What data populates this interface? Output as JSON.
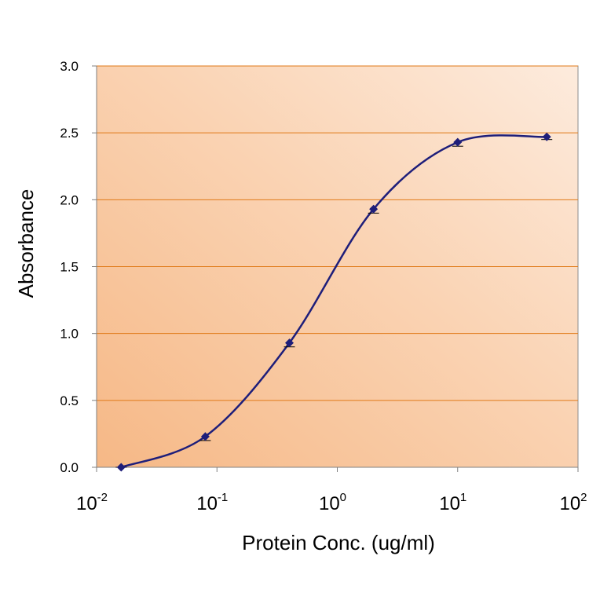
{
  "chart_data": {
    "type": "line",
    "title": "",
    "xlabel": "Protein Conc. (ug/ml)",
    "ylabel": "Absorbance",
    "x_scale": "log",
    "xlim": [
      0.01,
      100
    ],
    "ylim": [
      0,
      3.0
    ],
    "grid": "horizontal",
    "y_ticks": [
      "0.0",
      "0.5",
      "1.0",
      "1.5",
      "2.0",
      "2.5",
      "3.0"
    ],
    "x_ticks": [
      {
        "base": "10",
        "exp": "-2",
        "value": 0.01
      },
      {
        "base": "10",
        "exp": "-1",
        "value": 0.1
      },
      {
        "base": "10",
        "exp": "0",
        "value": 1
      },
      {
        "base": "10",
        "exp": "1",
        "value": 10
      },
      {
        "base": "10",
        "exp": "2",
        "value": 100
      }
    ],
    "series": [
      {
        "color": "#1e1e7a",
        "marker": "diamond",
        "x": [
          0.016,
          0.08,
          0.4,
          2.0,
          10.0,
          55.0
        ],
        "y": [
          0.0,
          0.23,
          0.93,
          1.93,
          2.43,
          2.47
        ],
        "error": [
          0.02,
          0.03,
          0.03,
          0.03,
          0.03,
          0.02
        ]
      }
    ]
  }
}
